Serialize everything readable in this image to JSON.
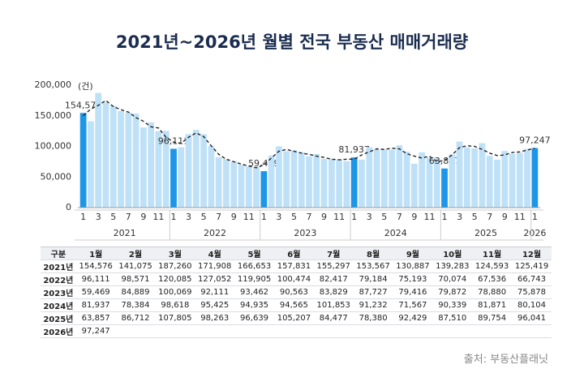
{
  "header": {
    "title": "2021년~2026년 월별 전국 부동산 매매거래량"
  },
  "chart_data": {
    "type": "bar",
    "unit_label": "(건)",
    "categories": [
      "1",
      null,
      "3",
      null,
      "5",
      null,
      "7",
      null,
      "9",
      null,
      "11",
      null,
      "1",
      null,
      "3",
      null,
      "5",
      null,
      "7",
      null,
      "9",
      null,
      "11",
      null,
      "1",
      null,
      "3",
      null,
      "5",
      null,
      "7",
      null,
      "9",
      null,
      "11",
      null,
      "1",
      null,
      "3",
      null,
      "5",
      null,
      "7",
      null,
      "9",
      null,
      "11",
      null,
      "1",
      null,
      "3",
      null,
      "5",
      null,
      "7",
      null,
      "9",
      null,
      "11",
      null,
      "1"
    ],
    "groups": [
      "2021",
      "2022",
      "2023",
      "2024",
      "2025",
      "2026"
    ],
    "ylim": [
      0,
      200000
    ],
    "yticks": [
      0,
      {
        "value": 50000,
        "label": "50,000"
      },
      {
        "value": 100000,
        "label": "100,000"
      },
      {
        "value": 150000,
        "label": "150,000"
      },
      {
        "value": 200000,
        "label": "200,000"
      }
    ],
    "grid": false,
    "series": [
      {
        "color": "#bfe1f7",
        "highlight_color": "#1e96e8",
        "values": [
          154576,
          141075,
          187260,
          171908,
          166653,
          157831,
          155297,
          153567,
          130887,
          139283,
          124593,
          125419,
          96111,
          98571,
          120085,
          127052,
          119905,
          100474,
          82417,
          79184,
          75193,
          70074,
          67536,
          66743,
          59469,
          84889,
          100069,
          92111,
          93462,
          90563,
          83829,
          87727,
          79416,
          79872,
          78880,
          75878,
          81937,
          78384,
          98618,
          95425,
          94935,
          94565,
          101853,
          91232,
          71567,
          90339,
          81871,
          80104,
          63857,
          86712,
          107805,
          98263,
          96639,
          105207,
          84477,
          78380,
          92429,
          87510,
          89754,
          96041,
          97247
        ],
        "value_labels": [
          "154,576",
          null,
          null,
          null,
          null,
          null,
          null,
          null,
          null,
          null,
          null,
          null,
          "96,111",
          null,
          null,
          null,
          null,
          null,
          null,
          null,
          null,
          null,
          null,
          null,
          "59,469",
          null,
          null,
          null,
          null,
          null,
          null,
          null,
          null,
          null,
          null,
          null,
          "81,937",
          null,
          null,
          null,
          null,
          null,
          null,
          null,
          null,
          null,
          null,
          null,
          "63,857",
          null,
          null,
          null,
          null,
          null,
          null,
          null,
          null,
          null,
          null,
          null,
          "97,247"
        ]
      },
      {
        "type": "line",
        "color": "#222222",
        "dash": true,
        "values": [
          150000,
          161000,
          167000,
          175000,
          165000,
          160000,
          156000,
          147000,
          141000,
          132000,
          130000,
          115000,
          107000,
          105000,
          115000,
          122000,
          116000,
          101000,
          87000,
          79000,
          75000,
          71000,
          68000,
          65000,
          70000,
          81000,
          92000,
          95000,
          92000,
          89000,
          87000,
          84000,
          82000,
          79000,
          78000,
          79000,
          79000,
          86000,
          91000,
          96000,
          95000,
          97000,
          96000,
          88000,
          84000,
          81000,
          84000,
          75000,
          77000,
          86000,
          98000,
          101000,
          100000,
          95000,
          89000,
          85000,
          86000,
          90000,
          91000,
          94000,
          97000
        ]
      }
    ]
  },
  "table": {
    "columns": [
      "구분",
      "1월",
      "2월",
      "3월",
      "4월",
      "5월",
      "6월",
      "7월",
      "8월",
      "9월",
      "10월",
      "11월",
      "12월"
    ],
    "rows": [
      [
        "2021년",
        "154,576",
        "141,075",
        "187,260",
        "171,908",
        "166,653",
        "157,831",
        "155,297",
        "153,567",
        "130,887",
        "139,283",
        "124,593",
        "125,419"
      ],
      [
        "2022년",
        "96,111",
        "98,571",
        "120,085",
        "127,052",
        "119,905",
        "100,474",
        "82,417",
        "79,184",
        "75,193",
        "70,074",
        "67,536",
        "66,743"
      ],
      [
        "2023년",
        "59,469",
        "84,889",
        "100,069",
        "92,111",
        "93,462",
        "90,563",
        "83,829",
        "87,727",
        "79,416",
        "79,872",
        "78,880",
        "75,878"
      ],
      [
        "2024년",
        "81,937",
        "78,384",
        "98,618",
        "95,425",
        "94,935",
        "94,565",
        "101,853",
        "91,232",
        "71,567",
        "90,339",
        "81,871",
        "80,104"
      ],
      [
        "2025년",
        "63,857",
        "86,712",
        "107,805",
        "98,263",
        "96,639",
        "105,207",
        "84,477",
        "78,380",
        "92,429",
        "87,510",
        "89,754",
        "96,041"
      ],
      [
        "2026년",
        "97,247"
      ]
    ]
  },
  "source": "출처: 부동산플래닛"
}
